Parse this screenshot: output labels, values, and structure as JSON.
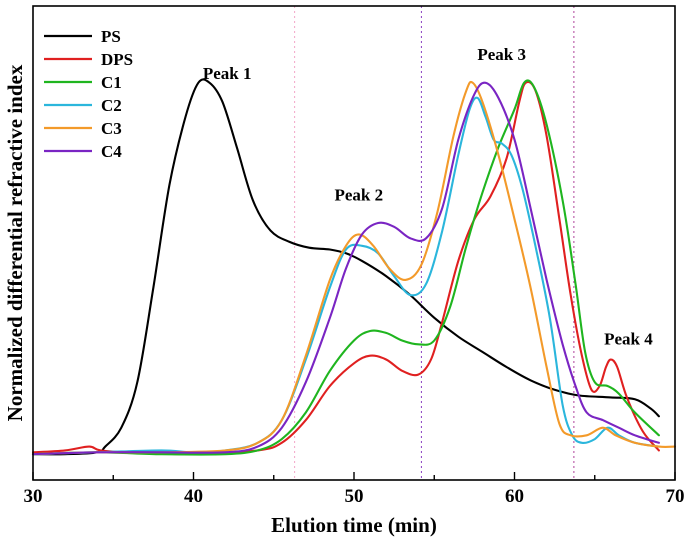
{
  "chart_data": {
    "type": "line",
    "title": "",
    "xlabel": "Elution time (min)",
    "ylabel": "Normalized differential refractive index",
    "xlim": [
      30,
      70
    ],
    "ylim": [
      0,
      1.05
    ],
    "xticks": [
      30,
      40,
      50,
      60,
      70
    ],
    "grid": false,
    "legend_position": "top-left",
    "series": [
      {
        "name": "PS",
        "color": "#000000",
        "points": [
          [
            30,
            0.01
          ],
          [
            32,
            0.01
          ],
          [
            34,
            0.015
          ],
          [
            34.5,
            0.03
          ],
          [
            35.5,
            0.08
          ],
          [
            36.5,
            0.2
          ],
          [
            37.5,
            0.45
          ],
          [
            38.5,
            0.72
          ],
          [
            39.5,
            0.9
          ],
          [
            40.3,
            0.99
          ],
          [
            41,
            0.99
          ],
          [
            41.8,
            0.94
          ],
          [
            42.7,
            0.82
          ],
          [
            43.7,
            0.68
          ],
          [
            44.8,
            0.6
          ],
          [
            46,
            0.57
          ],
          [
            47.2,
            0.555
          ],
          [
            48.5,
            0.55
          ],
          [
            49.5,
            0.54
          ],
          [
            50.5,
            0.52
          ],
          [
            52,
            0.48
          ],
          [
            53.5,
            0.43
          ],
          [
            55,
            0.37
          ],
          [
            56.5,
            0.32
          ],
          [
            58,
            0.28
          ],
          [
            59.5,
            0.24
          ],
          [
            61,
            0.205
          ],
          [
            62.5,
            0.18
          ],
          [
            64,
            0.165
          ],
          [
            66,
            0.16
          ],
          [
            67.5,
            0.155
          ],
          [
            68.5,
            0.13
          ],
          [
            69,
            0.11
          ]
        ]
      },
      {
        "name": "DPS",
        "color": "#e02020",
        "points": [
          [
            30,
            0.015
          ],
          [
            32,
            0.02
          ],
          [
            33.5,
            0.03
          ],
          [
            34.2,
            0.02
          ],
          [
            36,
            0.015
          ],
          [
            40,
            0.01
          ],
          [
            44,
            0.02
          ],
          [
            45.5,
            0.04
          ],
          [
            47,
            0.1
          ],
          [
            48.5,
            0.19
          ],
          [
            50,
            0.25
          ],
          [
            51,
            0.27
          ],
          [
            52,
            0.26
          ],
          [
            53,
            0.23
          ],
          [
            54,
            0.22
          ],
          [
            54.8,
            0.26
          ],
          [
            55.5,
            0.36
          ],
          [
            56.5,
            0.52
          ],
          [
            57.5,
            0.63
          ],
          [
            58.5,
            0.69
          ],
          [
            59.5,
            0.79
          ],
          [
            60.3,
            0.94
          ],
          [
            60.7,
            0.99
          ],
          [
            61.3,
            0.97
          ],
          [
            62,
            0.85
          ],
          [
            62.8,
            0.63
          ],
          [
            63.5,
            0.43
          ],
          [
            64.2,
            0.27
          ],
          [
            64.8,
            0.18
          ],
          [
            65.3,
            0.19
          ],
          [
            65.7,
            0.24
          ],
          [
            66,
            0.26
          ],
          [
            66.4,
            0.24
          ],
          [
            67,
            0.16
          ],
          [
            68,
            0.07
          ],
          [
            69,
            0.02
          ]
        ]
      },
      {
        "name": "C1",
        "color": "#1fb51f",
        "points": [
          [
            30,
            0.01
          ],
          [
            34,
            0.015
          ],
          [
            38,
            0.01
          ],
          [
            42,
            0.01
          ],
          [
            44,
            0.02
          ],
          [
            45.5,
            0.05
          ],
          [
            47,
            0.12
          ],
          [
            48.5,
            0.23
          ],
          [
            50,
            0.31
          ],
          [
            51,
            0.335
          ],
          [
            52,
            0.33
          ],
          [
            53,
            0.31
          ],
          [
            54,
            0.3
          ],
          [
            55,
            0.31
          ],
          [
            56,
            0.4
          ],
          [
            57,
            0.56
          ],
          [
            58,
            0.7
          ],
          [
            59,
            0.82
          ],
          [
            60,
            0.92
          ],
          [
            60.6,
            0.99
          ],
          [
            61.2,
            0.98
          ],
          [
            62,
            0.88
          ],
          [
            63,
            0.68
          ],
          [
            63.8,
            0.46
          ],
          [
            64.4,
            0.28
          ],
          [
            65,
            0.2
          ],
          [
            65.8,
            0.19
          ],
          [
            66.5,
            0.17
          ],
          [
            67.5,
            0.12
          ],
          [
            69,
            0.06
          ]
        ]
      },
      {
        "name": "C2",
        "color": "#2bb6dc",
        "points": [
          [
            30,
            0.01
          ],
          [
            34,
            0.015
          ],
          [
            38,
            0.02
          ],
          [
            40,
            0.015
          ],
          [
            42,
            0.02
          ],
          [
            44,
            0.04
          ],
          [
            45.5,
            0.1
          ],
          [
            47,
            0.26
          ],
          [
            48.5,
            0.45
          ],
          [
            49.5,
            0.55
          ],
          [
            50.5,
            0.56
          ],
          [
            51.5,
            0.54
          ],
          [
            52.5,
            0.48
          ],
          [
            53.5,
            0.43
          ],
          [
            54.5,
            0.46
          ],
          [
            55.5,
            0.6
          ],
          [
            56.5,
            0.8
          ],
          [
            57.2,
            0.92
          ],
          [
            57.7,
            0.95
          ],
          [
            58.2,
            0.9
          ],
          [
            58.7,
            0.84
          ],
          [
            59.2,
            0.83
          ],
          [
            59.8,
            0.8
          ],
          [
            60.5,
            0.71
          ],
          [
            61.3,
            0.56
          ],
          [
            62.2,
            0.37
          ],
          [
            63,
            0.14
          ],
          [
            63.6,
            0.06
          ],
          [
            64.2,
            0.04
          ],
          [
            65,
            0.05
          ],
          [
            65.8,
            0.08
          ],
          [
            66.5,
            0.06
          ],
          [
            67.5,
            0.04
          ],
          [
            69,
            0.03
          ]
        ]
      },
      {
        "name": "C3",
        "color": "#f39a2a",
        "points": [
          [
            30,
            0.01
          ],
          [
            34,
            0.015
          ],
          [
            38,
            0.015
          ],
          [
            42,
            0.02
          ],
          [
            44,
            0.04
          ],
          [
            45.5,
            0.1
          ],
          [
            47,
            0.27
          ],
          [
            48.5,
            0.47
          ],
          [
            49.5,
            0.56
          ],
          [
            50.3,
            0.59
          ],
          [
            51.2,
            0.56
          ],
          [
            52.2,
            0.5
          ],
          [
            53.2,
            0.47
          ],
          [
            54.2,
            0.51
          ],
          [
            55.2,
            0.65
          ],
          [
            56.2,
            0.85
          ],
          [
            57,
            0.97
          ],
          [
            57.4,
            0.99
          ],
          [
            58,
            0.94
          ],
          [
            59,
            0.8
          ],
          [
            60,
            0.63
          ],
          [
            61,
            0.45
          ],
          [
            62,
            0.24
          ],
          [
            62.8,
            0.09
          ],
          [
            63.5,
            0.06
          ],
          [
            64.5,
            0.06
          ],
          [
            65.5,
            0.08
          ],
          [
            66.3,
            0.06
          ],
          [
            67.5,
            0.04
          ],
          [
            69,
            0.03
          ],
          [
            70,
            0.03
          ]
        ]
      },
      {
        "name": "C4",
        "color": "#7a25c3",
        "points": [
          [
            30,
            0.01
          ],
          [
            34,
            0.015
          ],
          [
            38,
            0.015
          ],
          [
            42,
            0.015
          ],
          [
            44,
            0.03
          ],
          [
            45.5,
            0.08
          ],
          [
            47,
            0.2
          ],
          [
            48.5,
            0.37
          ],
          [
            49.5,
            0.5
          ],
          [
            50.5,
            0.59
          ],
          [
            51.5,
            0.62
          ],
          [
            52.5,
            0.61
          ],
          [
            53.5,
            0.58
          ],
          [
            54.5,
            0.58
          ],
          [
            55.5,
            0.66
          ],
          [
            56.5,
            0.84
          ],
          [
            57.5,
            0.96
          ],
          [
            58.2,
            0.99
          ],
          [
            59,
            0.95
          ],
          [
            60,
            0.84
          ],
          [
            61,
            0.66
          ],
          [
            62,
            0.47
          ],
          [
            63,
            0.3
          ],
          [
            63.8,
            0.19
          ],
          [
            64.5,
            0.12
          ],
          [
            65.5,
            0.1
          ],
          [
            66.5,
            0.08
          ],
          [
            67.5,
            0.06
          ],
          [
            69,
            0.04
          ]
        ]
      }
    ],
    "reference_lines": [
      {
        "x": 46.3,
        "color": "#f2a6c8"
      },
      {
        "x": 54.2,
        "color": "#8a3cc0"
      },
      {
        "x": 63.7,
        "color": "#b0409a"
      }
    ],
    "annotations": [
      {
        "text": "Peak 1",
        "x": 42.1,
        "y": 1.0
      },
      {
        "text": "Peak 2",
        "x": 50.3,
        "y": 0.68
      },
      {
        "text": "Peak 3",
        "x": 59.2,
        "y": 1.05
      },
      {
        "text": "Peak 4",
        "x": 67.1,
        "y": 0.3
      }
    ]
  }
}
